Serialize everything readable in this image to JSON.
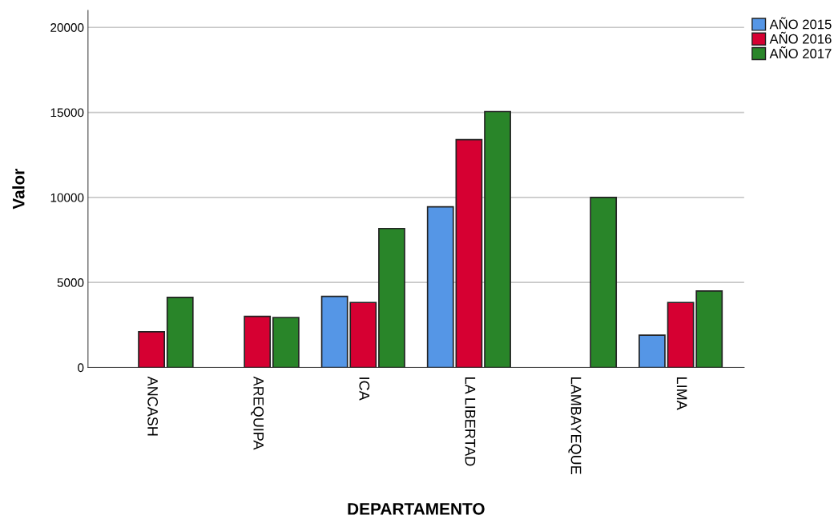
{
  "chart_data": {
    "type": "bar",
    "xlabel": "DEPARTAMENTO",
    "ylabel": "Valor",
    "categories": [
      "ANCASH",
      "AREQUIPA",
      "ICA",
      "LA LIBERTAD",
      "LAMBAYEQUE",
      "LIMA"
    ],
    "series": [
      {
        "name": "AÑO 2015",
        "color": "#5596e6",
        "values": [
          null,
          null,
          4180,
          9450,
          null,
          1900
        ]
      },
      {
        "name": "AÑO 2016",
        "color": "#d60032",
        "values": [
          2100,
          3000,
          3820,
          13400,
          null,
          3820
        ]
      },
      {
        "name": "AÑO 2017",
        "color": "#298529",
        "values": [
          4120,
          2940,
          8170,
          15050,
          10000,
          4500
        ]
      }
    ],
    "ylim": [
      0,
      21000
    ],
    "yticks": [
      0,
      5000,
      10000,
      15000,
      20000
    ],
    "grid": "y",
    "legend": "top right"
  }
}
